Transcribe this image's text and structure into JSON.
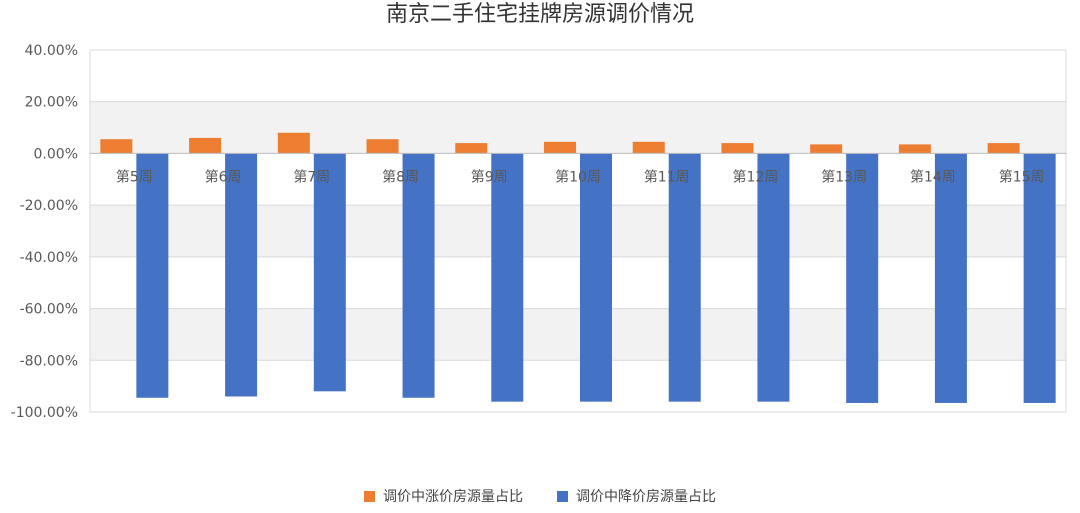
{
  "chart_data": {
    "type": "bar",
    "title": "南京二手住宅挂牌房源调价情况",
    "categories": [
      "第5周",
      "第6周",
      "第7周",
      "第8周",
      "第9周",
      "第10周",
      "第11周",
      "第12周",
      "第13周",
      "第14周",
      "第15周"
    ],
    "series": [
      {
        "name": "调价中涨价房源量占比",
        "color": "#ED7D31",
        "values": [
          5.5,
          6.0,
          8.0,
          5.5,
          4.0,
          4.5,
          4.5,
          4.0,
          3.5,
          3.5,
          4.0
        ]
      },
      {
        "name": "调价中降价房源量占比",
        "color": "#4472C4",
        "values": [
          -94.5,
          -94.0,
          -92.0,
          -94.5,
          -96.0,
          -96.0,
          -96.0,
          -96.0,
          -96.5,
          -96.5,
          -96.5
        ]
      }
    ],
    "ylim": [
      -100,
      40
    ],
    "yticks": [
      "40.00%",
      "20.00%",
      "0.00%",
      "-20.00%",
      "-40.00%",
      "-60.00%",
      "-80.00%",
      "-100.00%"
    ],
    "ytick_values": [
      40,
      20,
      0,
      -20,
      -40,
      -60,
      -80,
      -100
    ],
    "grid": true,
    "legend_position": "bottom"
  }
}
